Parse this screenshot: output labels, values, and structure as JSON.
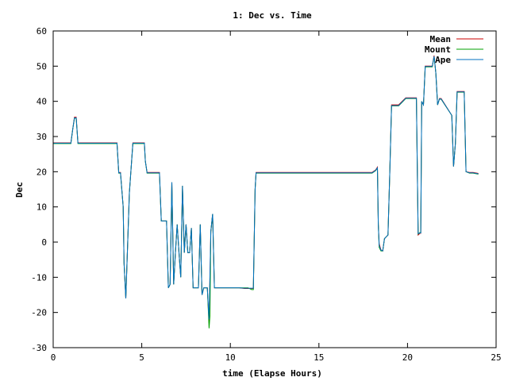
{
  "chart_data": {
    "type": "line",
    "title": "1: Dec vs. Time",
    "xlabel": "time (Elapse Hours)",
    "ylabel": "Dec",
    "xlim": [
      0,
      25
    ],
    "ylim": [
      -30,
      60
    ],
    "xticks": [
      0,
      5,
      10,
      15,
      20,
      25
    ],
    "yticks": [
      -30,
      -20,
      -10,
      0,
      10,
      20,
      30,
      40,
      50,
      60
    ],
    "grid": false,
    "legend_position": "top-right",
    "series": [
      {
        "name": "Mean",
        "color": "#cc0000",
        "x": [
          0,
          1.0,
          1.1,
          1.2,
          1.3,
          1.4,
          3.6,
          3.7,
          3.8,
          3.95,
          4.0,
          4.1,
          4.3,
          4.5,
          4.7,
          5.0,
          5.15,
          5.2,
          5.3,
          6.0,
          6.1,
          6.4,
          6.5,
          6.6,
          6.65,
          6.7,
          6.8,
          6.9,
          7.0,
          7.1,
          7.2,
          7.3,
          7.4,
          7.5,
          7.6,
          7.7,
          7.8,
          7.9,
          8.0,
          8.2,
          8.3,
          8.4,
          8.5,
          8.6,
          8.7,
          8.8,
          8.9,
          9.0,
          9.1,
          9.2,
          9.3,
          10.0,
          10.5,
          10.8,
          11.2,
          11.3,
          11.4,
          11.45,
          18.0,
          18.2,
          18.3,
          18.35,
          18.4,
          18.5,
          18.6,
          18.7,
          18.9,
          19.0,
          19.1,
          19.5,
          19.9,
          20.5,
          20.6,
          20.7,
          20.75,
          20.8,
          20.9,
          21.0,
          21.4,
          21.5,
          21.6,
          21.7,
          21.8,
          21.9,
          22.5,
          22.6,
          22.7,
          22.8,
          22.9,
          23.0,
          23.1,
          23.2,
          23.3,
          23.5,
          23.6,
          23.65,
          23.7,
          24.0
        ],
        "y": [
          28.2,
          28.2,
          32,
          35.5,
          35.5,
          28.2,
          28.2,
          19.8,
          19.8,
          10,
          -6,
          -16,
          14,
          28.2,
          28.2,
          28.2,
          28.2,
          23,
          19.8,
          19.8,
          6,
          6,
          -13,
          -12,
          2,
          17,
          -12,
          -3,
          5,
          -3,
          -10,
          16,
          -3,
          5,
          -3,
          -3,
          4,
          -13,
          -13,
          -13,
          5,
          -15,
          -13,
          -13,
          -13,
          -23,
          3,
          8,
          -13,
          -13,
          -13,
          -13,
          -13,
          -13.2,
          -13.2,
          -13.2,
          15,
          19.8,
          19.8,
          20.5,
          21.3,
          5,
          -0.5,
          -2.2,
          -2.5,
          1,
          2,
          20,
          39,
          39,
          41,
          41,
          2,
          2.5,
          2.5,
          40,
          39,
          50,
          50,
          53,
          48,
          39,
          40.8,
          40.8,
          36,
          21.5,
          28,
          42.8,
          42.8,
          42.8,
          42.8,
          42.8,
          20,
          19.8,
          19.8,
          19.8,
          19.8,
          19.5
        ],
        "note_overlap": true
      },
      {
        "name": "Mount",
        "color": "#00a000",
        "x": [
          0,
          1.0,
          1.1,
          1.2,
          1.3,
          1.4,
          3.6,
          3.7,
          3.8,
          3.95,
          4.0,
          4.1,
          4.3,
          4.5,
          4.7,
          5.0,
          5.15,
          5.2,
          5.3,
          6.0,
          6.1,
          6.4,
          6.5,
          6.6,
          6.65,
          6.7,
          6.8,
          6.9,
          7.0,
          7.1,
          7.2,
          7.3,
          7.4,
          7.5,
          7.6,
          7.7,
          7.8,
          7.9,
          8.0,
          8.2,
          8.3,
          8.4,
          8.5,
          8.6,
          8.7,
          8.8,
          8.85,
          8.9,
          9.0,
          9.1,
          9.2,
          9.3,
          10.0,
          11.0,
          11.2,
          11.3,
          11.4,
          11.45,
          18.0,
          18.2,
          18.3,
          18.35,
          18.4,
          18.5,
          18.6,
          18.7,
          18.9,
          19.0,
          19.1,
          19.5,
          19.9,
          20.5,
          20.6,
          20.7,
          20.75,
          20.8,
          20.9,
          21.0,
          21.4,
          21.5,
          21.6,
          21.7,
          21.8,
          21.9,
          22.5,
          22.6,
          22.7,
          22.8,
          22.9,
          23.0,
          23.1,
          23.2,
          23.3,
          23.5,
          23.6,
          23.65,
          23.7,
          24.0
        ],
        "y": [
          28.0,
          28.0,
          32,
          35.2,
          35.2,
          28.0,
          28.0,
          19.6,
          19.6,
          10,
          -6,
          -16,
          14,
          28.0,
          28.0,
          28.0,
          28.0,
          23,
          19.6,
          19.6,
          6,
          6,
          -13,
          -12,
          2,
          17,
          -12,
          -3,
          5,
          -3,
          -10,
          16,
          -3,
          5,
          -3,
          -3,
          4,
          -13,
          -13,
          -13,
          5,
          -15,
          -13,
          -13,
          -13,
          -24.5,
          -21,
          3,
          8,
          -13,
          -13,
          -13,
          -13,
          -13,
          -13.5,
          -13.5,
          15,
          19.6,
          19.6,
          20.3,
          21.0,
          5,
          -1.5,
          -2.5,
          -2.5,
          1,
          2,
          20,
          38.7,
          38.7,
          40.8,
          40.8,
          2.3,
          2.7,
          2.7,
          40,
          39,
          49.8,
          49.8,
          52.7,
          48,
          39,
          40.6,
          40.6,
          36,
          21.5,
          28,
          42.6,
          42.6,
          42.6,
          42.6,
          42.6,
          20,
          19.6,
          19.6,
          19.6,
          19.6,
          19.3
        ]
      },
      {
        "name": "Ape",
        "color": "#0070c0",
        "x": [
          0,
          1.0,
          1.1,
          1.2,
          1.3,
          1.4,
          3.6,
          3.7,
          3.8,
          3.95,
          4.0,
          4.1,
          4.3,
          4.5,
          4.7,
          5.0,
          5.15,
          5.2,
          5.3,
          6.0,
          6.1,
          6.4,
          6.5,
          6.6,
          6.65,
          6.7,
          6.8,
          6.9,
          7.0,
          7.1,
          7.2,
          7.3,
          7.4,
          7.5,
          7.6,
          7.7,
          7.8,
          7.9,
          8.0,
          8.2,
          8.3,
          8.4,
          8.5,
          8.6,
          8.7,
          8.8,
          8.9,
          9.0,
          9.1,
          9.2,
          9.3,
          10.0,
          10.5,
          10.8,
          11.2,
          11.3,
          11.4,
          11.45,
          18.0,
          18.2,
          18.3,
          18.35,
          18.4,
          18.5,
          18.6,
          18.7,
          18.9,
          19.0,
          19.1,
          19.5,
          19.9,
          20.5,
          20.6,
          20.7,
          20.75,
          20.8,
          20.9,
          21.0,
          21.4,
          21.5,
          21.6,
          21.7,
          21.8,
          21.9,
          22.5,
          22.6,
          22.7,
          22.8,
          22.9,
          23.0,
          23.1,
          23.2,
          23.3,
          23.5,
          23.6,
          23.65,
          23.7,
          24.0
        ],
        "y": [
          28.1,
          28.1,
          32,
          35.3,
          35.3,
          28.1,
          28.1,
          19.7,
          19.7,
          10,
          -6,
          -16,
          14,
          28.1,
          28.1,
          28.1,
          28.1,
          23,
          19.7,
          19.7,
          6,
          6,
          -13,
          -12,
          2,
          17,
          -12,
          -3,
          5,
          -3,
          -10,
          16,
          -3,
          5,
          -3,
          -3,
          4,
          -13,
          -13,
          -13,
          5,
          -15,
          -13,
          -13,
          -13,
          -22,
          3,
          8,
          -13,
          -13,
          -13,
          -13,
          -13,
          -13.1,
          -13.1,
          -13.1,
          15,
          19.7,
          19.7,
          20.4,
          21.1,
          5,
          -1,
          -2.3,
          -2.5,
          1,
          2,
          20,
          38.8,
          38.8,
          40.9,
          40.9,
          2.4,
          2.6,
          2.6,
          40,
          39,
          49.9,
          49.9,
          52.8,
          48,
          39,
          40.7,
          40.7,
          36,
          21.5,
          28,
          42.7,
          42.7,
          42.7,
          42.7,
          42.7,
          20,
          19.7,
          19.7,
          19.7,
          19.7,
          19.4
        ]
      }
    ]
  }
}
